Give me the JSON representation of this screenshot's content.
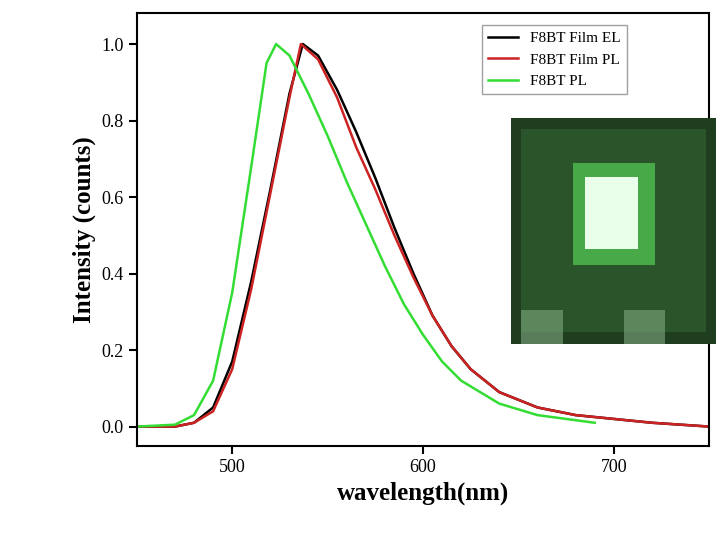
{
  "chart_data": {
    "type": "line",
    "x_label": "wavelength(nm)",
    "y_label": "Intensity (counts)",
    "xlim": [
      450,
      750
    ],
    "ylim": [
      -0.05,
      1.08
    ],
    "xticks": [
      500,
      600,
      700
    ],
    "yticks": [
      0.0,
      0.2,
      0.4,
      0.6,
      0.8,
      1.0
    ],
    "legend": "upper right",
    "series": [
      {
        "name": "F8BT Film EL",
        "color": "#000000",
        "x": [
          450,
          470,
          480,
          490,
          500,
          510,
          520,
          530,
          537,
          545,
          555,
          565,
          575,
          585,
          595,
          605,
          615,
          625,
          640,
          660,
          680,
          700,
          720,
          750
        ],
        "values": [
          0.0,
          0.0,
          0.01,
          0.05,
          0.17,
          0.38,
          0.62,
          0.87,
          1.0,
          0.97,
          0.88,
          0.77,
          0.65,
          0.52,
          0.4,
          0.29,
          0.21,
          0.15,
          0.09,
          0.05,
          0.03,
          0.02,
          0.01,
          0.0
        ]
      },
      {
        "name": "F8BT Film PL",
        "color": "#cc2222",
        "x": [
          450,
          470,
          480,
          490,
          500,
          510,
          520,
          530,
          536,
          545,
          555,
          565,
          575,
          585,
          595,
          605,
          615,
          625,
          640,
          660,
          680,
          700,
          720,
          750
        ],
        "values": [
          0.0,
          0.0,
          0.01,
          0.04,
          0.15,
          0.36,
          0.61,
          0.86,
          1.0,
          0.96,
          0.86,
          0.73,
          0.62,
          0.5,
          0.39,
          0.29,
          0.21,
          0.15,
          0.09,
          0.05,
          0.03,
          0.02,
          0.01,
          0.0
        ]
      },
      {
        "name": "F8BT PL",
        "color": "#33dd33",
        "x": [
          450,
          470,
          480,
          490,
          500,
          510,
          518,
          523,
          530,
          540,
          550,
          560,
          570,
          580,
          590,
          600,
          610,
          620,
          640,
          660,
          690
        ],
        "values": [
          0.0,
          0.005,
          0.03,
          0.12,
          0.35,
          0.68,
          0.95,
          1.0,
          0.97,
          0.87,
          0.76,
          0.64,
          0.53,
          0.42,
          0.32,
          0.24,
          0.17,
          0.12,
          0.06,
          0.03,
          0.01
        ]
      }
    ]
  }
}
